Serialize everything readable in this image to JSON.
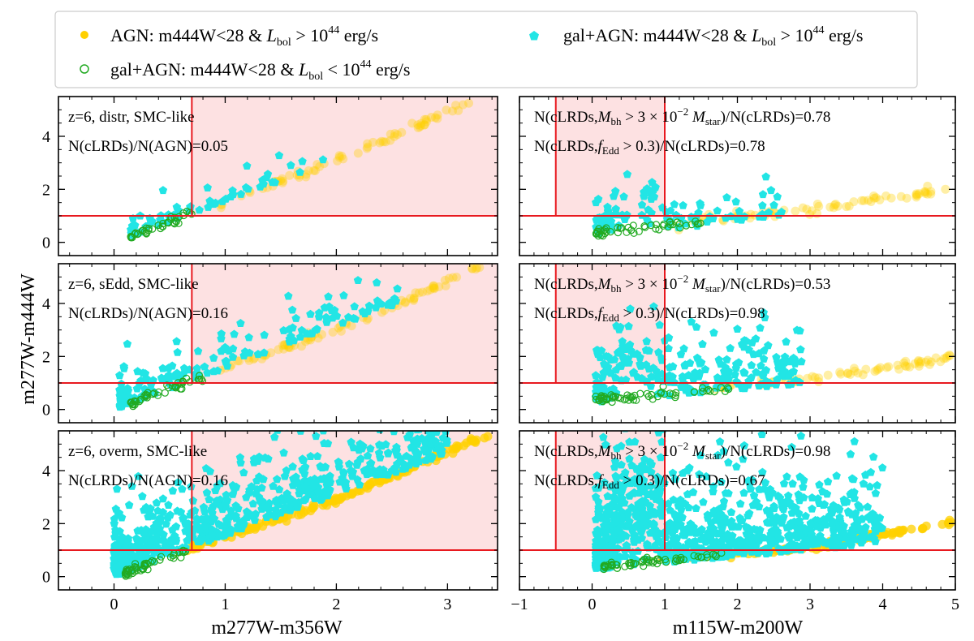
{
  "colors": {
    "agn": "#FFD000",
    "galagn_bright": "#22E5E5",
    "galagn_faint": "#22AA22",
    "cut_line": "#E8191F",
    "shade": "#FDE1E2"
  },
  "legend": {
    "agn": {
      "pre": "AGN: m444W<28 & ",
      "mid": " > 10",
      "exp": "44",
      "post": " erg/s"
    },
    "galagn_faint": {
      "pre": "gal+AGN: m444W<28 & ",
      "mid": " < 10",
      "exp": "44",
      "post": " erg/s"
    },
    "galagn_bright": {
      "pre": "gal+AGN: m444W<28 & ",
      "mid": " > 10",
      "exp": "44",
      "post": " erg/s"
    },
    "lbol": "L",
    "lbol_sub": "bol"
  },
  "axes": {
    "ylabel": "m277W-m444W",
    "xlabel_left": "m277W-m356W",
    "xlabel_right": "m115W-m200W",
    "left_xticks": [
      "0",
      "1",
      "2",
      "3"
    ],
    "right_xticks": [
      "−1",
      "0",
      "1",
      "2",
      "3",
      "4",
      "5"
    ],
    "yticks": [
      "0",
      "2",
      "4"
    ]
  },
  "chart_data": [
    {
      "type": "scatter",
      "panel": "distr-left",
      "title": "z=6, distr, SMC-like",
      "ratio_label": "N(cLRDs)/N(AGN)=0.05",
      "xlim": [
        -0.5,
        3.45
      ],
      "ylim": [
        -0.5,
        5.5
      ],
      "cut_x": 0.7,
      "cut_y": 1.0,
      "agn_curve": [
        [
          1.0,
          1.5
        ],
        [
          2.0,
          3.1
        ],
        [
          3.2,
          5.3
        ]
      ],
      "agn_spread": 0.08,
      "agn_alpha": 0.35,
      "agn_count": 70,
      "bright": {
        "count": 60,
        "x_range": [
          0.15,
          1.9
        ],
        "scatter_y": 0.35
      },
      "faint": {
        "count": 40,
        "x_range": [
          0.15,
          0.7
        ]
      }
    },
    {
      "type": "scatter",
      "panel": "distr-right",
      "bh_label": {
        "pre": "N(cLRDs,",
        "M": "M",
        "sub": "bh",
        "mid": " > 3 × 10",
        "exp": "−2",
        "M2": "M",
        "sub2": "star",
        "post": ")/N(cLRDs)=0.78"
      },
      "edd_label": {
        "pre": "N(cLRDs,",
        "f": "f",
        "sub": "Edd",
        "mid": " > 0.3)/N(cLRDs)=0.78"
      },
      "xlim": [
        -1,
        5
      ],
      "ylim": [
        -0.5,
        5.5
      ],
      "cut_x_lo": -0.5,
      "cut_x_hi": 1.0,
      "cut_y": 1.0,
      "agn_curve": [
        [
          1.2,
          0.75
        ],
        [
          3.0,
          1.25
        ],
        [
          4.9,
          2.0
        ]
      ],
      "agn_spread": 0.08,
      "agn_alpha": 0.35,
      "agn_count": 70,
      "bright": {
        "count": 100,
        "x_range": [
          0.05,
          2.7
        ],
        "scatter_y": 0.6
      },
      "faint": {
        "count": 50,
        "x_range": [
          0.05,
          1.5
        ]
      }
    },
    {
      "type": "scatter",
      "panel": "sedd-left",
      "title": "z=6, sEdd, SMC-like",
      "ratio_label": "N(cLRDs)/N(AGN)=0.16",
      "xlim": [
        -0.5,
        3.45
      ],
      "ylim": [
        -0.5,
        5.5
      ],
      "cut_x": 0.7,
      "cut_y": 1.0,
      "agn_curve": [
        [
          1.0,
          1.55
        ],
        [
          2.2,
          3.3
        ],
        [
          3.3,
          5.4
        ]
      ],
      "agn_spread": 0.08,
      "agn_alpha": 0.35,
      "agn_count": 80,
      "bright": {
        "count": 160,
        "x_range": [
          0.05,
          2.6
        ],
        "scatter_y": 0.6
      },
      "faint": {
        "count": 45,
        "x_range": [
          0.15,
          0.8
        ]
      }
    },
    {
      "type": "scatter",
      "panel": "sedd-right",
      "bh_label": {
        "pre": "N(cLRDs,",
        "M": "M",
        "sub": "bh",
        "mid": " > 3 × 10",
        "exp": "−2",
        "M2": "M",
        "sub2": "star",
        "post": ")/N(cLRDs)=0.53"
      },
      "edd_label": {
        "pre": "N(cLRDs,",
        "f": "f",
        "sub": "Edd",
        "mid": " > 0.3)/N(cLRDs)=0.98"
      },
      "xlim": [
        -1,
        5
      ],
      "ylim": [
        -0.5,
        5.5
      ],
      "cut_x_lo": -0.5,
      "cut_x_hi": 1.0,
      "cut_y": 1.0,
      "agn_curve": [
        [
          1.5,
          0.8
        ],
        [
          3.5,
          1.3
        ],
        [
          5.0,
          2.0
        ]
      ],
      "agn_spread": 0.08,
      "agn_alpha": 0.35,
      "agn_count": 70,
      "bright": {
        "count": 250,
        "x_range": [
          0.05,
          2.9
        ],
        "scatter_y": 1.1
      },
      "faint": {
        "count": 60,
        "x_range": [
          0.05,
          1.9
        ]
      }
    },
    {
      "type": "scatter",
      "panel": "overm-left",
      "title": "z=6, overm, SMC-like",
      "ratio_label": "N(cLRDs)/N(AGN)=0.16",
      "xlim": [
        -0.5,
        3.45
      ],
      "ylim": [
        -0.5,
        5.5
      ],
      "cut_x": 0.7,
      "cut_y": 1.0,
      "agn_curve": [
        [
          0.7,
          1.1
        ],
        [
          2.0,
          2.9
        ],
        [
          3.4,
          5.4
        ]
      ],
      "agn_spread": 0.06,
      "agn_alpha": 0.75,
      "agn_count": 160,
      "bright": {
        "count": 650,
        "x_range": [
          0.0,
          3.0
        ],
        "scatter_y": 1.2
      },
      "faint": {
        "count": 50,
        "x_range": [
          0.1,
          0.65
        ]
      }
    },
    {
      "type": "scatter",
      "panel": "overm-right",
      "bh_label": {
        "pre": "N(cLRDs,",
        "M": "M",
        "sub": "bh",
        "mid": " > 3 × 10",
        "exp": "−2",
        "M2": "M",
        "sub2": "star",
        "post": ")/N(cLRDs)=0.98"
      },
      "edd_label": {
        "pre": "N(cLRDs,",
        "f": "f",
        "sub": "Edd",
        "mid": " > 0.3)/N(cLRDs)=0.67"
      },
      "xlim": [
        -1,
        5
      ],
      "ylim": [
        -0.5,
        5.5
      ],
      "cut_x_lo": -0.5,
      "cut_x_hi": 1.0,
      "cut_y": 1.0,
      "agn_curve": [
        [
          1.0,
          0.75
        ],
        [
          3.0,
          1.1
        ],
        [
          5.0,
          2.1
        ]
      ],
      "agn_spread": 0.06,
      "agn_alpha": 0.75,
      "agn_count": 150,
      "bright": {
        "count": 900,
        "x_range": [
          0.05,
          4.0
        ],
        "scatter_y": 1.5
      },
      "faint": {
        "count": 60,
        "x_range": [
          0.15,
          1.8
        ]
      }
    }
  ]
}
